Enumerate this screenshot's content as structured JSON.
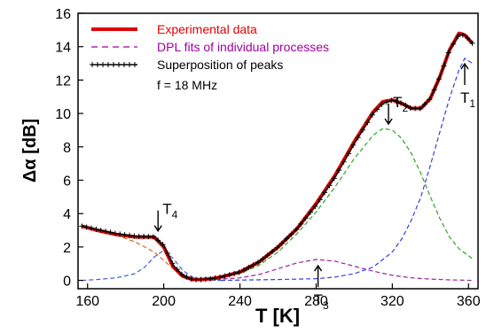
{
  "chart_data": {
    "type": "line",
    "xlabel": "T [K]",
    "ylabel": "Δα [dB]",
    "xlim": [
      155,
      365
    ],
    "ylim": [
      -0.5,
      16
    ],
    "x_ticks": [
      160,
      200,
      240,
      280,
      320,
      360
    ],
    "y_ticks": [
      0,
      2,
      4,
      6,
      8,
      10,
      12,
      14,
      16
    ],
    "grid": false,
    "legend_position": "top-left",
    "legend": [
      {
        "label": "Experimental data",
        "color": "#e00000",
        "style": "solid"
      },
      {
        "label": "DPL fits of individual processes",
        "color": "#a000a0",
        "style": "dashed"
      },
      {
        "label": "Superposition of peaks",
        "color": "#000000",
        "style": "plus"
      }
    ],
    "note": "f = 18 MHz",
    "series": [
      {
        "name": "Experimental data",
        "kind": "experimental",
        "color": "#e00000",
        "x": [
          157,
          165,
          175,
          185,
          195,
          200,
          205,
          210,
          215,
          220,
          225,
          230,
          240,
          250,
          260,
          270,
          280,
          290,
          300,
          310,
          315,
          320,
          325,
          330,
          335,
          340,
          345,
          350,
          355,
          358,
          362
        ],
        "y": [
          3.25,
          3.0,
          2.75,
          2.6,
          2.6,
          2.0,
          0.8,
          0.25,
          0.05,
          0.05,
          0.1,
          0.2,
          0.5,
          1.1,
          2.0,
          3.1,
          4.6,
          6.3,
          8.3,
          10.1,
          10.7,
          10.8,
          10.6,
          10.3,
          10.3,
          10.9,
          12.2,
          13.8,
          14.8,
          14.7,
          14.2
        ]
      },
      {
        "name": "Superposition of peaks",
        "kind": "superposition",
        "color": "#000000",
        "x": [
          157,
          165,
          175,
          185,
          195,
          200,
          205,
          210,
          215,
          220,
          225,
          230,
          240,
          250,
          260,
          270,
          280,
          290,
          300,
          310,
          315,
          320,
          325,
          330,
          335,
          340,
          345,
          350,
          355,
          358,
          362
        ],
        "y": [
          3.25,
          3.05,
          2.8,
          2.65,
          2.6,
          2.1,
          0.9,
          0.3,
          0.05,
          0.05,
          0.1,
          0.2,
          0.5,
          1.1,
          2.0,
          3.1,
          4.5,
          6.2,
          8.2,
          10.0,
          10.6,
          10.8,
          10.6,
          10.3,
          10.3,
          10.9,
          12.2,
          13.8,
          14.7,
          14.7,
          14.2
        ]
      },
      {
        "name": "DPL fit T4",
        "kind": "fit",
        "color": "#c07030",
        "x": [
          157,
          165,
          175,
          185,
          190,
          195,
          200,
          205,
          210,
          215,
          220,
          225,
          230
        ],
        "y": [
          3.25,
          3.0,
          2.7,
          2.3,
          2.0,
          1.7,
          1.2,
          0.7,
          0.35,
          0.15,
          0.05,
          0.02,
          0.0
        ]
      },
      {
        "name": "DPL fit T4 low side",
        "kind": "fit",
        "color": "#4060e0",
        "x": [
          157,
          165,
          175,
          185,
          190,
          195,
          200,
          205,
          210,
          215,
          220,
          230
        ],
        "y": [
          0.0,
          0.05,
          0.15,
          0.4,
          0.8,
          1.4,
          1.8,
          1.3,
          0.6,
          0.2,
          0.05,
          0.0
        ]
      },
      {
        "name": "DPL fit T3",
        "kind": "fit",
        "color": "#a020a0",
        "x": [
          220,
          240,
          250,
          260,
          270,
          280,
          290,
          300,
          310,
          320,
          330,
          340,
          350,
          362
        ],
        "y": [
          0.0,
          0.15,
          0.35,
          0.7,
          1.05,
          1.25,
          1.15,
          0.85,
          0.55,
          0.3,
          0.15,
          0.08,
          0.03,
          0.0
        ]
      },
      {
        "name": "DPL fit T2",
        "kind": "fit",
        "color": "#30a030",
        "x": [
          220,
          240,
          250,
          260,
          270,
          280,
          290,
          300,
          310,
          315,
          320,
          325,
          330,
          335,
          340,
          345,
          350,
          355,
          362
        ],
        "y": [
          0.05,
          0.4,
          0.9,
          1.7,
          2.8,
          4.1,
          5.6,
          7.3,
          8.7,
          9.1,
          9.0,
          8.5,
          7.6,
          6.4,
          5.0,
          3.7,
          2.6,
          1.9,
          1.3
        ]
      },
      {
        "name": "DPL fit T1",
        "kind": "fit",
        "color": "#3040e0",
        "x": [
          230,
          260,
          280,
          290,
          300,
          310,
          320,
          325,
          330,
          335,
          340,
          345,
          350,
          355,
          358,
          362
        ],
        "y": [
          0.0,
          0.05,
          0.1,
          0.2,
          0.4,
          0.8,
          1.7,
          2.5,
          3.6,
          5.0,
          6.9,
          8.9,
          10.9,
          12.6,
          13.3,
          13.0
        ]
      }
    ],
    "annotations": [
      {
        "main": "T",
        "sub": "4",
        "x": 197,
        "y": 2.7
      },
      {
        "main": "T",
        "sub": "3",
        "x": 281,
        "y": 1.3
      },
      {
        "main": "T",
        "sub": "2",
        "x": 318,
        "y": 9.1
      },
      {
        "main": "T",
        "sub": "1",
        "x": 358,
        "y": 13.4
      }
    ]
  }
}
